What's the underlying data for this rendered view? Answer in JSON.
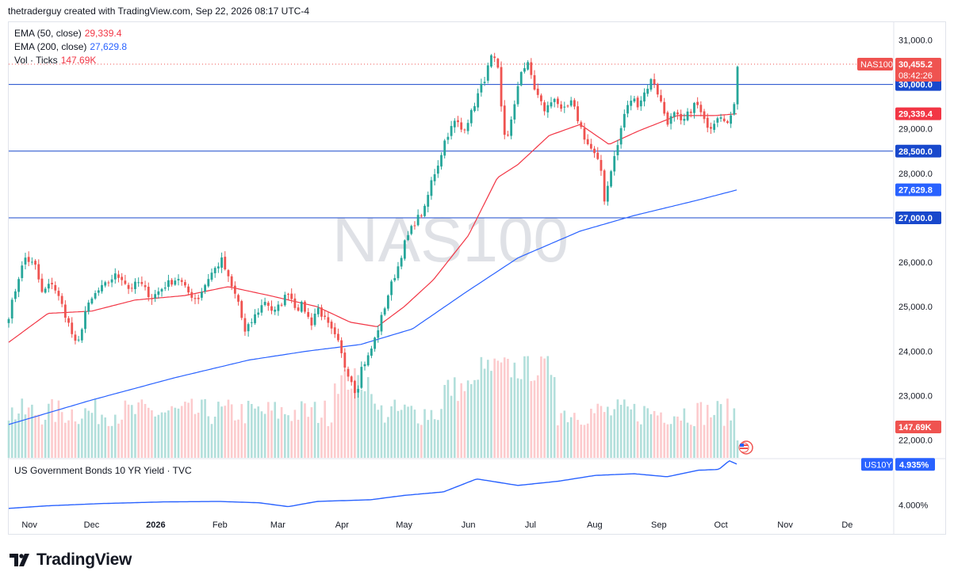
{
  "header": {
    "attribution": "thetraderguy created with TradingView.com, Sep 22, 2026 08:17 UTC-4"
  },
  "legend": {
    "ema50_label": "EMA (50, close)",
    "ema50_value": "29,339.4",
    "ema200_label": "EMA (200, close)",
    "ema200_value": "27,629.8",
    "vol_label": "Vol · Ticks",
    "vol_value": "147.69K"
  },
  "watermark": "NAS100",
  "colors": {
    "up": "#26a69a",
    "down": "#ef5350",
    "ema50": "#f23645",
    "ema200": "#2962ff",
    "hline": "#1848cc",
    "yield_line": "#2962ff",
    "vol_up": "#b2dfdb",
    "vol_down": "#fccbcd"
  },
  "footer": {
    "brand": "TradingView"
  },
  "chart_data": [
    {
      "type": "candlestick",
      "symbol": "NAS100",
      "ylim": [
        21600,
        31400
      ],
      "y_ticks": [
        "31,000.0",
        "29,000.0",
        "28,000.0",
        "26,000.0",
        "25,000.0",
        "24,000.0",
        "23,000.0",
        "22,000.0"
      ],
      "y_tick_values": [
        31000,
        29000,
        28000,
        26000,
        25000,
        24000,
        23000,
        22000
      ],
      "x_ticks": [
        "Nov",
        "Dec",
        "2026",
        "Feb",
        "Mar",
        "Apr",
        "May",
        "Jun",
        "Jul",
        "Aug",
        "Sep",
        "Oct",
        "Nov",
        "De"
      ],
      "x_tick_dates": [
        "2025-11-01",
        "2025-12-01",
        "2026-01-01",
        "2026-02-01",
        "2026-03-01",
        "2026-04-01",
        "2026-05-01",
        "2026-06-01",
        "2026-07-01",
        "2026-08-01",
        "2026-09-01",
        "2026-10-01",
        "2026-11-01",
        "2026-12-01"
      ],
      "horizontal_levels": [
        {
          "value": 30000,
          "label": "30,000.0"
        },
        {
          "value": 28500,
          "label": "28,500.0"
        },
        {
          "value": 27000,
          "label": "27,000.0"
        }
      ],
      "last_price": {
        "symbol": "NAS100",
        "value": 30455.2,
        "label": "30,455.2",
        "countdown": "08:42:26"
      },
      "ema50_last": {
        "value": 29339.4,
        "label": "29,339.4"
      },
      "ema200_last": {
        "value": 27629.8,
        "label": "27,629.8"
      },
      "volume_last": {
        "label": "147.69K"
      },
      "price_anchors": [
        [
          "2025-10-22",
          24800
        ],
        [
          "2025-10-27",
          25700
        ],
        [
          "2025-10-30",
          26100
        ],
        [
          "2025-11-04",
          25900
        ],
        [
          "2025-11-07",
          25300
        ],
        [
          "2025-11-12",
          25550
        ],
        [
          "2025-11-17",
          25000
        ],
        [
          "2025-11-20",
          24600
        ],
        [
          "2025-11-24",
          24050
        ],
        [
          "2025-11-28",
          24900
        ],
        [
          "2025-12-03",
          25300
        ],
        [
          "2025-12-08",
          25500
        ],
        [
          "2025-12-12",
          25700
        ],
        [
          "2025-12-16",
          25650
        ],
        [
          "2025-12-19",
          25400
        ],
        [
          "2025-12-24",
          25550
        ],
        [
          "2025-12-30",
          25200
        ],
        [
          "2026-01-06",
          25500
        ],
        [
          "2026-01-12",
          25650
        ],
        [
          "2026-01-16",
          25350
        ],
        [
          "2026-01-21",
          25150
        ],
        [
          "2026-01-27",
          25700
        ],
        [
          "2026-02-02",
          26050
        ],
        [
          "2026-02-06",
          25500
        ],
        [
          "2026-02-10",
          25100
        ],
        [
          "2026-02-13",
          24400
        ],
        [
          "2026-02-18",
          24800
        ],
        [
          "2026-02-23",
          25150
        ],
        [
          "2026-02-27",
          24850
        ],
        [
          "2026-03-03",
          25100
        ],
        [
          "2026-03-06",
          25350
        ],
        [
          "2026-03-10",
          24950
        ],
        [
          "2026-03-13",
          25050
        ],
        [
          "2026-03-17",
          24600
        ],
        [
          "2026-03-20",
          25000
        ],
        [
          "2026-03-25",
          24600
        ],
        [
          "2026-03-30",
          24200
        ],
        [
          "2026-04-02",
          23700
        ],
        [
          "2026-04-06",
          23300
        ],
        [
          "2026-04-08",
          23000
        ],
        [
          "2026-04-10",
          23600
        ],
        [
          "2026-04-14",
          23900
        ],
        [
          "2026-04-17",
          24300
        ],
        [
          "2026-04-21",
          24900
        ],
        [
          "2026-04-24",
          25400
        ],
        [
          "2026-04-28",
          25900
        ],
        [
          "2026-05-01",
          26400
        ],
        [
          "2026-05-06",
          26900
        ],
        [
          "2026-05-11",
          27200
        ],
        [
          "2026-05-14",
          27800
        ],
        [
          "2026-05-18",
          28300
        ],
        [
          "2026-05-21",
          28800
        ],
        [
          "2026-05-26",
          29200
        ],
        [
          "2026-05-29",
          28950
        ],
        [
          "2026-06-02",
          29300
        ],
        [
          "2026-06-05",
          29700
        ],
        [
          "2026-06-09",
          30150
        ],
        [
          "2026-06-12",
          30600
        ],
        [
          "2026-06-15",
          30450
        ],
        [
          "2026-06-17",
          29400
        ],
        [
          "2026-06-19",
          28700
        ],
        [
          "2026-06-23",
          29400
        ],
        [
          "2026-06-26",
          30300
        ],
        [
          "2026-06-30",
          30450
        ],
        [
          "2026-07-03",
          29900
        ],
        [
          "2026-07-08",
          29400
        ],
        [
          "2026-07-13",
          29750
        ],
        [
          "2026-07-16",
          29350
        ],
        [
          "2026-07-21",
          29600
        ],
        [
          "2026-07-24",
          29200
        ],
        [
          "2026-07-28",
          28700
        ],
        [
          "2026-07-31",
          28500
        ],
        [
          "2026-08-04",
          28100
        ],
        [
          "2026-08-06",
          27300
        ],
        [
          "2026-08-08",
          27950
        ],
        [
          "2026-08-12",
          28600
        ],
        [
          "2026-08-15",
          29300
        ],
        [
          "2026-08-19",
          29700
        ],
        [
          "2026-08-22",
          29550
        ],
        [
          "2026-08-26",
          29900
        ],
        [
          "2026-08-29",
          30150
        ],
        [
          "2026-09-02",
          29600
        ],
        [
          "2026-09-05",
          29150
        ],
        [
          "2026-09-09",
          29350
        ],
        [
          "2026-09-12",
          29100
        ],
        [
          "2026-09-16",
          29400
        ],
        [
          "2026-09-19",
          29600
        ],
        [
          "2026-09-23",
          29150
        ],
        [
          "2026-09-26",
          29050
        ],
        [
          "2026-09-30",
          29350
        ],
        [
          "2026-10-02",
          29300
        ],
        [
          "2026-10-05",
          29050
        ],
        [
          "2026-10-08",
          29750
        ],
        [
          "2026-10-09",
          30455
        ]
      ],
      "ema50_anchors": [
        [
          "2025-10-22",
          24200
        ],
        [
          "2025-11-10",
          24850
        ],
        [
          "2025-12-01",
          24900
        ],
        [
          "2025-12-22",
          25150
        ],
        [
          "2026-01-15",
          25250
        ],
        [
          "2026-02-05",
          25450
        ],
        [
          "2026-02-25",
          25250
        ],
        [
          "2026-03-20",
          25000
        ],
        [
          "2026-04-05",
          24650
        ],
        [
          "2026-04-18",
          24550
        ],
        [
          "2026-05-01",
          25000
        ],
        [
          "2026-05-15",
          25600
        ],
        [
          "2026-06-01",
          26600
        ],
        [
          "2026-06-15",
          27900
        ],
        [
          "2026-06-25",
          28200
        ],
        [
          "2026-07-10",
          28850
        ],
        [
          "2026-07-25",
          29100
        ],
        [
          "2026-08-08",
          28650
        ],
        [
          "2026-08-22",
          28950
        ],
        [
          "2026-09-10",
          29300
        ],
        [
          "2026-09-28",
          29300
        ],
        [
          "2026-10-09",
          29339
        ]
      ],
      "ema200_anchors": [
        [
          "2025-10-22",
          22350
        ],
        [
          "2025-12-01",
          22900
        ],
        [
          "2026-01-10",
          23400
        ],
        [
          "2026-02-15",
          23800
        ],
        [
          "2026-03-15",
          24000
        ],
        [
          "2026-04-10",
          24150
        ],
        [
          "2026-05-05",
          24500
        ],
        [
          "2026-05-30",
          25300
        ],
        [
          "2026-06-25",
          26100
        ],
        [
          "2026-07-25",
          26700
        ],
        [
          "2026-08-20",
          27050
        ],
        [
          "2026-09-20",
          27400
        ],
        [
          "2026-10-09",
          27630
        ]
      ],
      "volume_note": "volume histogram, values not labelled"
    },
    {
      "type": "line",
      "name": "US Government Bonds 10 YR Yield · TVC",
      "symbol": "US10Y",
      "last_value_label": "4.935%",
      "y_ticks": [
        "4.000%"
      ],
      "y_tick_values": [
        4.0
      ],
      "ylim": [
        3.77,
        5.05
      ],
      "anchors": [
        [
          "2025-10-22",
          3.92
        ],
        [
          "2025-11-10",
          3.98
        ],
        [
          "2025-12-05",
          4.03
        ],
        [
          "2026-01-05",
          4.07
        ],
        [
          "2026-02-01",
          4.08
        ],
        [
          "2026-02-20",
          4.05
        ],
        [
          "2026-03-06",
          3.96
        ],
        [
          "2026-03-20",
          4.08
        ],
        [
          "2026-04-15",
          4.12
        ],
        [
          "2026-05-01",
          4.22
        ],
        [
          "2026-05-20",
          4.3
        ],
        [
          "2026-06-05",
          4.6
        ],
        [
          "2026-06-25",
          4.45
        ],
        [
          "2026-07-15",
          4.55
        ],
        [
          "2026-08-01",
          4.68
        ],
        [
          "2026-08-20",
          4.72
        ],
        [
          "2026-09-05",
          4.65
        ],
        [
          "2026-09-20",
          4.8
        ],
        [
          "2026-09-30",
          4.82
        ],
        [
          "2026-10-05",
          5.02
        ],
        [
          "2026-10-09",
          4.935
        ]
      ]
    }
  ]
}
